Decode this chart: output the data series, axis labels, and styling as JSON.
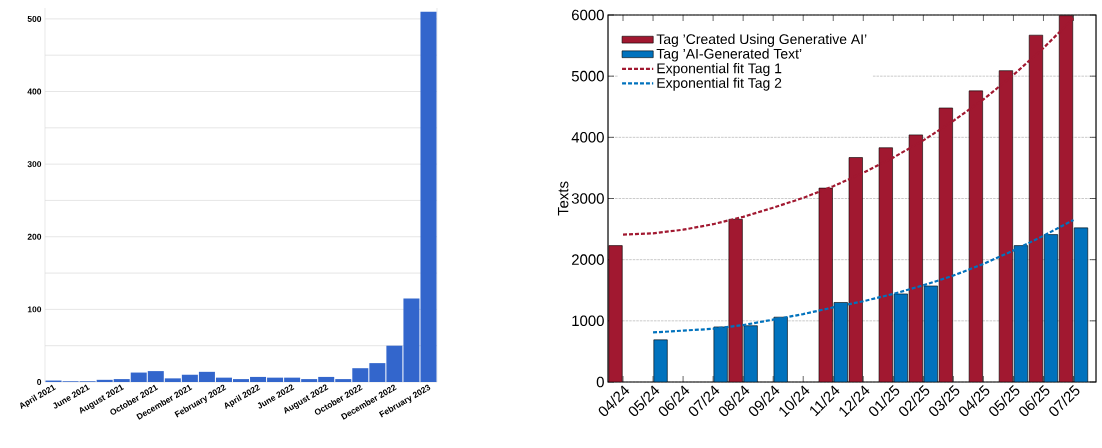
{
  "chart_data": [
    {
      "type": "bar",
      "categories": [
        "April 2021",
        null,
        "June 2021",
        null,
        "August 2021",
        null,
        "October 2021",
        null,
        "December 2021",
        null,
        "February 2022",
        null,
        "April 2022",
        null,
        "June 2022",
        null,
        "August 2022",
        null,
        "October 2022",
        null,
        "December 2022",
        null,
        "February 2023"
      ],
      "values": [
        2,
        1,
        1,
        3,
        4,
        13,
        15,
        5,
        10,
        14,
        6,
        4,
        7,
        6,
        6,
        4,
        7,
        4,
        19,
        26,
        50,
        115,
        510
      ],
      "color": "#3366cc",
      "ylim": [
        0,
        515
      ],
      "yticks": [
        0,
        {
          "value": 50,
          "label": null
        },
        100,
        {
          "value": 150,
          "label": null
        },
        200,
        {
          "value": 250,
          "label": null
        },
        300,
        {
          "value": 350,
          "label": null
        },
        400,
        {
          "value": 450,
          "label": null
        },
        500
      ],
      "grid": "y"
    },
    {
      "type": "bar",
      "categories": [
        "04/24",
        "05/24",
        "06/24",
        "07/24",
        "08/24",
        "09/24",
        "10/24",
        "11/24",
        "12/24",
        "01/25",
        "02/25",
        "03/25",
        "04/25",
        "05/25",
        "06/25",
        "07/25"
      ],
      "series": [
        {
          "name": "Tag ’Created Using Generative AI’",
          "color": "#a11830",
          "values": [
            2230,
            null,
            null,
            null,
            2660,
            null,
            null,
            3170,
            3670,
            3830,
            4040,
            4480,
            4760,
            5090,
            5670,
            5990
          ]
        },
        {
          "name": "Tag ’AI-Generated Text’",
          "color": "#0072bd",
          "values": [
            null,
            690,
            null,
            900,
            920,
            1060,
            null,
            1300,
            null,
            1440,
            1570,
            null,
            null,
            2230,
            2410,
            2520
          ]
        },
        {
          "name": "Exponential fit Tag 1",
          "type": "line",
          "line_style": "dashed",
          "color": "#a11830",
          "values": [
            2410,
            2430,
            2490,
            2580,
            2700,
            2850,
            3010,
            3200,
            3420,
            3670,
            3950,
            4270,
            4620,
            5020,
            5460,
            5950
          ]
        },
        {
          "name": "Exponential fit Tag 2",
          "type": "line",
          "line_style": "dashed",
          "color": "#0072bd",
          "values": [
            null,
            810,
            840,
            870,
            930,
            1020,
            1110,
            1220,
            1320,
            1440,
            1580,
            1740,
            1930,
            2150,
            2390,
            2650
          ]
        }
      ],
      "ylabel": "Texts",
      "ylim": [
        0,
        6000
      ],
      "yticks": [
        0,
        1000,
        2000,
        3000,
        4000,
        5000,
        6000
      ],
      "grid": "y",
      "legend": "top left"
    }
  ]
}
